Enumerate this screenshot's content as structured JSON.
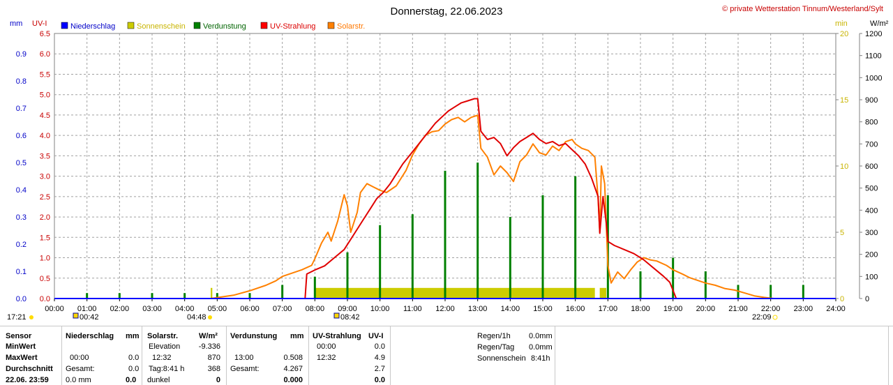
{
  "header": {
    "title": "Donnerstag, 22.06.2023",
    "copyright": "© private Wetterstation Tinnum/Westerland/Sylt",
    "unit_mm": "mm",
    "unit_uvi": "UV-I",
    "unit_min": "min",
    "unit_wm2": "W/m²"
  },
  "legend": [
    {
      "label": "Niederschlag",
      "color": "#0000ff",
      "text_color": "#0000c8"
    },
    {
      "label": "Sonnenschein",
      "color": "#cccc00",
      "text_color": "#c8b400"
    },
    {
      "label": "Verdunstung",
      "color": "#008000",
      "text_color": "#006400"
    },
    {
      "label": "UV-Strahlung",
      "color": "#ff0000",
      "text_color": "#dc0000"
    },
    {
      "label": "Solarstr.",
      "color": "#ff8000",
      "text_color": "#ff7800"
    }
  ],
  "colors": {
    "rain": "#0000ff",
    "sunshine": "#cccc00",
    "evaporation": "#008000",
    "uv": "#e00000",
    "solar": "#ff8000",
    "grid": "#a0a0a0",
    "axis_mm": "#0000c8",
    "axis_uvi": "#c80000",
    "axis_min": "#c8b400",
    "axis_wm2": "#000000"
  },
  "chart_data": {
    "type": "line",
    "x_unit": "hour of day",
    "xlim": [
      0,
      24
    ],
    "x_ticks": [
      "00:00",
      "01:00",
      "02:00",
      "03:00",
      "04:00",
      "05:00",
      "06:00",
      "07:00",
      "08:00",
      "09:00",
      "10:00",
      "11:00",
      "12:00",
      "13:00",
      "14:00",
      "15:00",
      "16:00",
      "17:00",
      "18:00",
      "19:00",
      "20:00",
      "21:00",
      "22:00",
      "23:00",
      "24:00"
    ],
    "axes": {
      "mm": {
        "ylim": [
          0,
          0.975
        ],
        "ticks": [
          "0.0",
          "0.1",
          "0.2",
          "0.3",
          "0.4",
          "0.5",
          "0.6",
          "0.7",
          "0.8",
          "0.9"
        ],
        "values": [
          0,
          0.1,
          0.2,
          0.3,
          0.4,
          0.5,
          0.6,
          0.7,
          0.8,
          0.9
        ]
      },
      "uvi": {
        "ylim": [
          0,
          6.5
        ],
        "ticks": [
          "0.0",
          "0.5",
          "1.0",
          "1.5",
          "2.0",
          "2.5",
          "3.0",
          "3.5",
          "4.0",
          "4.5",
          "5.0",
          "5.5",
          "6.0",
          "6.5"
        ],
        "values": [
          0,
          0.5,
          1,
          1.5,
          2,
          2.5,
          3,
          3.5,
          4,
          4.5,
          5,
          5.5,
          6,
          6.5
        ]
      },
      "min": {
        "ylim": [
          0,
          20
        ],
        "ticks": [
          "0",
          "5",
          "10",
          "15",
          "20"
        ],
        "values": [
          0,
          5,
          10,
          15,
          20
        ]
      },
      "wm2": {
        "ylim": [
          0,
          1200
        ],
        "ticks": [
          "0",
          "100",
          "200",
          "300",
          "400",
          "500",
          "600",
          "700",
          "800",
          "900",
          "1000",
          "1100",
          "1200"
        ],
        "values": [
          0,
          100,
          200,
          300,
          400,
          500,
          600,
          700,
          800,
          900,
          1000,
          1100,
          1200
        ]
      }
    },
    "series": [
      {
        "name": "Solarstr.",
        "axis": "wm2",
        "points": [
          [
            4.8,
            0
          ],
          [
            5.5,
            15
          ],
          [
            6.0,
            35
          ],
          [
            6.5,
            60
          ],
          [
            6.8,
            80
          ],
          [
            7.0,
            100
          ],
          [
            7.3,
            115
          ],
          [
            7.6,
            130
          ],
          [
            7.9,
            150
          ],
          [
            8.0,
            180
          ],
          [
            8.2,
            250
          ],
          [
            8.4,
            300
          ],
          [
            8.5,
            260
          ],
          [
            8.7,
            350
          ],
          [
            8.9,
            470
          ],
          [
            9.0,
            420
          ],
          [
            9.1,
            300
          ],
          [
            9.3,
            390
          ],
          [
            9.4,
            480
          ],
          [
            9.6,
            520
          ],
          [
            9.8,
            505
          ],
          [
            10.0,
            490
          ],
          [
            10.2,
            480
          ],
          [
            10.5,
            510
          ],
          [
            10.8,
            580
          ],
          [
            11.0,
            650
          ],
          [
            11.2,
            700
          ],
          [
            11.4,
            740
          ],
          [
            11.6,
            755
          ],
          [
            11.8,
            760
          ],
          [
            12.0,
            790
          ],
          [
            12.2,
            810
          ],
          [
            12.4,
            820
          ],
          [
            12.6,
            800
          ],
          [
            12.8,
            820
          ],
          [
            13.0,
            830
          ],
          [
            13.1,
            680
          ],
          [
            13.3,
            640
          ],
          [
            13.5,
            560
          ],
          [
            13.7,
            600
          ],
          [
            13.9,
            570
          ],
          [
            14.1,
            530
          ],
          [
            14.3,
            620
          ],
          [
            14.5,
            650
          ],
          [
            14.7,
            700
          ],
          [
            14.9,
            660
          ],
          [
            15.1,
            650
          ],
          [
            15.3,
            690
          ],
          [
            15.5,
            670
          ],
          [
            15.7,
            710
          ],
          [
            15.9,
            720
          ],
          [
            16.0,
            700
          ],
          [
            16.2,
            680
          ],
          [
            16.4,
            670
          ],
          [
            16.6,
            640
          ],
          [
            16.7,
            450
          ],
          [
            16.75,
            300
          ],
          [
            16.8,
            600
          ],
          [
            16.9,
            520
          ],
          [
            17.0,
            150
          ],
          [
            17.1,
            70
          ],
          [
            17.3,
            120
          ],
          [
            17.5,
            90
          ],
          [
            17.7,
            130
          ],
          [
            17.9,
            165
          ],
          [
            18.1,
            185
          ],
          [
            18.3,
            175
          ],
          [
            18.5,
            170
          ],
          [
            18.8,
            150
          ],
          [
            19.0,
            130
          ],
          [
            19.3,
            110
          ],
          [
            19.5,
            95
          ],
          [
            19.8,
            80
          ],
          [
            20.0,
            70
          ],
          [
            20.3,
            60
          ],
          [
            20.6,
            45
          ],
          [
            20.9,
            38
          ],
          [
            21.2,
            25
          ],
          [
            21.5,
            12
          ],
          [
            21.8,
            5
          ],
          [
            22.1,
            0
          ]
        ]
      },
      {
        "name": "UV-Strahlung",
        "axis": "uvi",
        "points": [
          [
            7.7,
            0
          ],
          [
            7.75,
            0.6
          ],
          [
            8.0,
            0.7
          ],
          [
            8.3,
            0.8
          ],
          [
            8.6,
            1.0
          ],
          [
            8.9,
            1.2
          ],
          [
            9.1,
            1.45
          ],
          [
            9.3,
            1.7
          ],
          [
            9.5,
            1.95
          ],
          [
            9.7,
            2.2
          ],
          [
            9.9,
            2.45
          ],
          [
            10.1,
            2.6
          ],
          [
            10.3,
            2.8
          ],
          [
            10.5,
            3.05
          ],
          [
            10.7,
            3.3
          ],
          [
            10.9,
            3.5
          ],
          [
            11.1,
            3.7
          ],
          [
            11.3,
            3.9
          ],
          [
            11.5,
            4.1
          ],
          [
            11.7,
            4.3
          ],
          [
            11.9,
            4.45
          ],
          [
            12.1,
            4.6
          ],
          [
            12.3,
            4.7
          ],
          [
            12.5,
            4.8
          ],
          [
            12.7,
            4.85
          ],
          [
            12.9,
            4.9
          ],
          [
            13.0,
            4.9
          ],
          [
            13.1,
            4.1
          ],
          [
            13.3,
            3.9
          ],
          [
            13.5,
            3.95
          ],
          [
            13.7,
            3.8
          ],
          [
            13.9,
            3.5
          ],
          [
            14.1,
            3.7
          ],
          [
            14.3,
            3.85
          ],
          [
            14.5,
            3.95
          ],
          [
            14.7,
            4.05
          ],
          [
            14.9,
            3.9
          ],
          [
            15.1,
            3.8
          ],
          [
            15.3,
            3.85
          ],
          [
            15.5,
            3.75
          ],
          [
            15.7,
            3.8
          ],
          [
            15.9,
            3.65
          ],
          [
            16.1,
            3.5
          ],
          [
            16.3,
            3.3
          ],
          [
            16.5,
            2.95
          ],
          [
            16.7,
            2.5
          ],
          [
            16.75,
            1.6
          ],
          [
            16.85,
            2.5
          ],
          [
            16.95,
            1.85
          ],
          [
            17.0,
            1.4
          ],
          [
            17.2,
            1.3
          ],
          [
            17.5,
            1.2
          ],
          [
            17.8,
            1.1
          ],
          [
            18.1,
            0.95
          ],
          [
            18.4,
            0.75
          ],
          [
            18.7,
            0.55
          ],
          [
            18.9,
            0.4
          ],
          [
            19.1,
            0.0
          ]
        ]
      }
    ],
    "sunshine_bars": {
      "axis": "min",
      "ranges": [
        [
          4.8,
          4.85,
          0.8
        ],
        [
          8.0,
          16.6,
          0.8
        ],
        [
          16.75,
          16.95,
          0.8
        ]
      ]
    },
    "evaporation_bars": {
      "axis": "mm",
      "points": [
        [
          1.0,
          0.02
        ],
        [
          2.0,
          0.02
        ],
        [
          3.0,
          0.02
        ],
        [
          4.0,
          0.02
        ],
        [
          5.0,
          0.02
        ],
        [
          6.0,
          0.02
        ],
        [
          7.0,
          0.05
        ],
        [
          8.0,
          0.08
        ],
        [
          9.0,
          0.17
        ],
        [
          10.0,
          0.27
        ],
        [
          11.0,
          0.31
        ],
        [
          12.0,
          0.47
        ],
        [
          13.0,
          0.5
        ],
        [
          14.0,
          0.3
        ],
        [
          15.0,
          0.38
        ],
        [
          16.0,
          0.45
        ],
        [
          17.0,
          0.38
        ],
        [
          18.0,
          0.1
        ],
        [
          19.0,
          0.15
        ],
        [
          20.0,
          0.1
        ],
        [
          21.0,
          0.05
        ],
        [
          22.0,
          0.05
        ],
        [
          23.0,
          0.05
        ]
      ]
    }
  },
  "events": {
    "moonrise_left": "17:21",
    "moon1": "00:42",
    "sunrise": "04:48",
    "noon": "08:42",
    "sunset": "22:09"
  },
  "stats": {
    "sensor_col": {
      "header": "Sensor",
      "rows": [
        "MinWert",
        "MaxWert",
        "Durchschnitt",
        "22.06. 23:59"
      ]
    },
    "rain": {
      "header": "Niederschlag",
      "unit": "mm",
      "rows": [
        [
          "",
          ""
        ],
        [
          "00:00",
          "0.0"
        ],
        [
          "Gesamt:",
          "0.0"
        ],
        [
          "0.0 mm",
          "0.0"
        ]
      ]
    },
    "solar": {
      "header": "Solarstr.",
      "unit": "W/m²",
      "rows": [
        [
          "Elevation",
          "-9.336"
        ],
        [
          "12:32",
          "870"
        ],
        [
          "Tag:8:41 h",
          "368"
        ],
        [
          "dunkel",
          "0"
        ]
      ]
    },
    "evap": {
      "header": "Verdunstung",
      "unit": "mm",
      "rows": [
        [
          "",
          ""
        ],
        [
          "13:00",
          "0.508"
        ],
        [
          "Gesamt:",
          "4.267"
        ],
        [
          "",
          "0.000"
        ]
      ]
    },
    "uv": {
      "header": "UV-Strahlung",
      "unit": "UV-I",
      "rows": [
        [
          "00:00",
          "0.0"
        ],
        [
          "12:32",
          "4.9"
        ],
        [
          "",
          "2.7"
        ],
        [
          "",
          "0.0"
        ]
      ]
    },
    "extra": {
      "rows": [
        [
          "Regen/1h",
          "0.0mm"
        ],
        [
          "Regen/Tag",
          "0.0mm"
        ],
        [
          "Sonnenschein",
          "8:41h"
        ]
      ]
    }
  }
}
